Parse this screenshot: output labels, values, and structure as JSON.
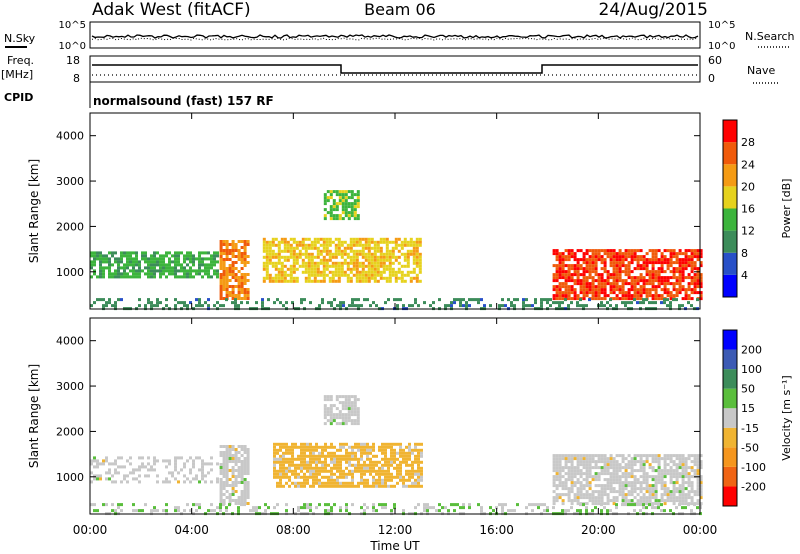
{
  "header": {
    "station": "Adak West (fitACF)",
    "beam": "Beam 06",
    "date": "24/Aug/2015"
  },
  "params": {
    "nsky_label": "N.Sky",
    "nsearch_label": "N.Search",
    "freq_label_1": "Freq.",
    "freq_label_2": "[MHz]",
    "nave_label": "Nave",
    "cpid_label": "CPID",
    "cpid_text": "normalsound (fast) 157 RF",
    "noise_ticks_left": [
      "10^5",
      "10^0"
    ],
    "noise_ticks_right": [
      "10^5",
      "10^0"
    ],
    "freq_ticks": [
      "18",
      "8"
    ],
    "nave_ticks": [
      "60",
      "0"
    ]
  },
  "chart_data": [
    {
      "type": "heatmap",
      "title": "",
      "xlabel": "Time UT",
      "ylabel": "Slant Range [km]",
      "xlim": [
        0,
        24
      ],
      "ylim": [
        180,
        4500
      ],
      "x_ticks": [
        "00:00",
        "04:00",
        "08:00",
        "12:00",
        "16:00",
        "20:00",
        "00:00"
      ],
      "y_ticks": [
        "1000",
        "2000",
        "3000",
        "4000"
      ],
      "colorbar": {
        "label": "Power [dB]",
        "ticks": [
          "28",
          "24",
          "20",
          "16",
          "12",
          "8",
          "4"
        ],
        "range": [
          0,
          30
        ],
        "colors": [
          "#0000ff",
          "#2850c8",
          "#3c8c5a",
          "#3cb43c",
          "#e6d21e",
          "#f59b14",
          "#f05a0a",
          "#ff0000"
        ]
      },
      "regions": [
        {
          "label": "evening band",
          "t": [
            0.0,
            5.0
          ],
          "range_km": [
            900,
            1450
          ],
          "value": 12
        },
        {
          "label": "sunset patch",
          "t": [
            5.1,
            6.2
          ],
          "range_km": [
            400,
            1700
          ],
          "value": 22
        },
        {
          "label": "morning echoes",
          "t": [
            6.8,
            13.0
          ],
          "range_km": [
            800,
            1750
          ],
          "value": 18
        },
        {
          "label": "high-range echoes",
          "t": [
            9.2,
            10.6
          ],
          "range_km": [
            2200,
            2800
          ],
          "value": 14
        },
        {
          "label": "dawn echoes",
          "t": [
            18.2,
            24.0
          ],
          "range_km": [
            400,
            1500
          ],
          "value": 26
        },
        {
          "label": "ground scatter",
          "t": [
            0.0,
            24.0
          ],
          "range_km": [
            180,
            420
          ],
          "value": 9
        }
      ]
    },
    {
      "type": "heatmap",
      "title": "",
      "xlabel": "Time UT",
      "ylabel": "Slant Range [km]",
      "xlim": [
        0,
        24
      ],
      "ylim": [
        180,
        4500
      ],
      "x_ticks": [
        "00:00",
        "04:00",
        "08:00",
        "12:00",
        "16:00",
        "20:00",
        "00:00"
      ],
      "y_ticks": [
        "1000",
        "2000",
        "3000",
        "4000"
      ],
      "colorbar": {
        "label": "Velocity [m s⁻¹]",
        "ticks": [
          "200",
          "100",
          "50",
          "15",
          "-15",
          "-50",
          "-100",
          "-200"
        ],
        "range": [
          -250,
          250
        ],
        "colors": [
          "#ff0000",
          "#f06414",
          "#f5961e",
          "#f0b432",
          "#c8c8c8",
          "#5abe3c",
          "#3c8c5a",
          "#3c5ab4",
          "#0000ff"
        ]
      },
      "regions": [
        {
          "label": "ground scatter",
          "t": [
            0.0,
            5.0
          ],
          "range_km": [
            900,
            1450
          ],
          "value": 0
        },
        {
          "label": "sunset patch",
          "t": [
            5.1,
            6.2
          ],
          "range_km": [
            400,
            1700
          ],
          "value": 0
        },
        {
          "label": "morning echoes",
          "t": [
            7.2,
            13.0
          ],
          "range_km": [
            800,
            1750
          ],
          "value": -50
        },
        {
          "label": "high-range echoes",
          "t": [
            9.2,
            10.6
          ],
          "range_km": [
            2200,
            2800
          ],
          "value": 0
        },
        {
          "label": "dawn echoes",
          "t": [
            18.2,
            24.0
          ],
          "range_km": [
            400,
            1500
          ],
          "value": 0
        },
        {
          "label": "low-range echoes",
          "t": [
            0.0,
            24.0
          ],
          "range_km": [
            180,
            420
          ],
          "value": 20
        }
      ]
    }
  ]
}
